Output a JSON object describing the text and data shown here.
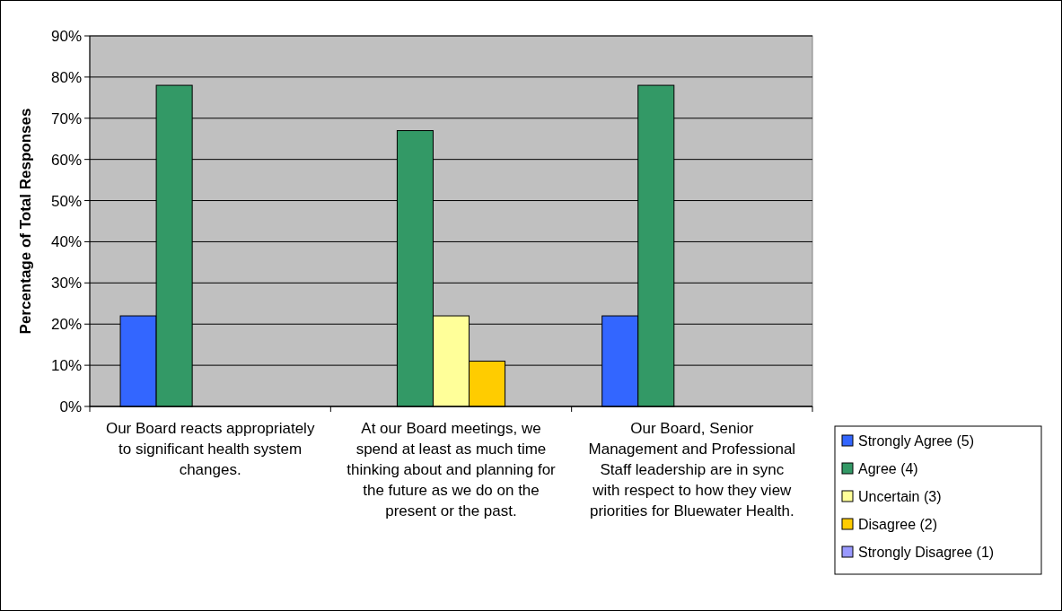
{
  "chart_data": {
    "type": "bar",
    "ylabel": "Percentage of Total Responses",
    "categories": [
      "Our Board reacts appropriately to significant health system changes.",
      "At our Board meetings, we spend at least as much time thinking about and planning for the future as we do on the present or the past.",
      "Our Board, Senior Management and Professional Staff leadership are in sync with respect to how they view priorities for Bluewater Health."
    ],
    "series": [
      {
        "name": "Strongly Agree (5)",
        "color": "#3366ff",
        "values": [
          22,
          0,
          22
        ]
      },
      {
        "name": "Agree (4)",
        "color": "#339966",
        "values": [
          78,
          67,
          78
        ]
      },
      {
        "name": "Uncertain (3)",
        "color": "#ffff99",
        "values": [
          0,
          22,
          0
        ]
      },
      {
        "name": "Disagree (2)",
        "color": "#ffcc00",
        "values": [
          0,
          11,
          0
        ]
      },
      {
        "name": "Strongly Disagree (1)",
        "color": "#9999ff",
        "values": [
          0,
          0,
          0
        ]
      }
    ],
    "ylim": [
      0,
      90
    ],
    "yticks": [
      {
        "value": 0,
        "label": "0%"
      },
      {
        "value": 10,
        "label": "10%"
      },
      {
        "value": 20,
        "label": "20%"
      },
      {
        "value": 30,
        "label": "30%"
      },
      {
        "value": 40,
        "label": "40%"
      },
      {
        "value": 50,
        "label": "50%"
      },
      {
        "value": 60,
        "label": "60%"
      },
      {
        "value": 70,
        "label": "70%"
      },
      {
        "value": 80,
        "label": "80%"
      },
      {
        "value": 90,
        "label": "90%"
      }
    ],
    "grid": "y",
    "legend": "right"
  }
}
